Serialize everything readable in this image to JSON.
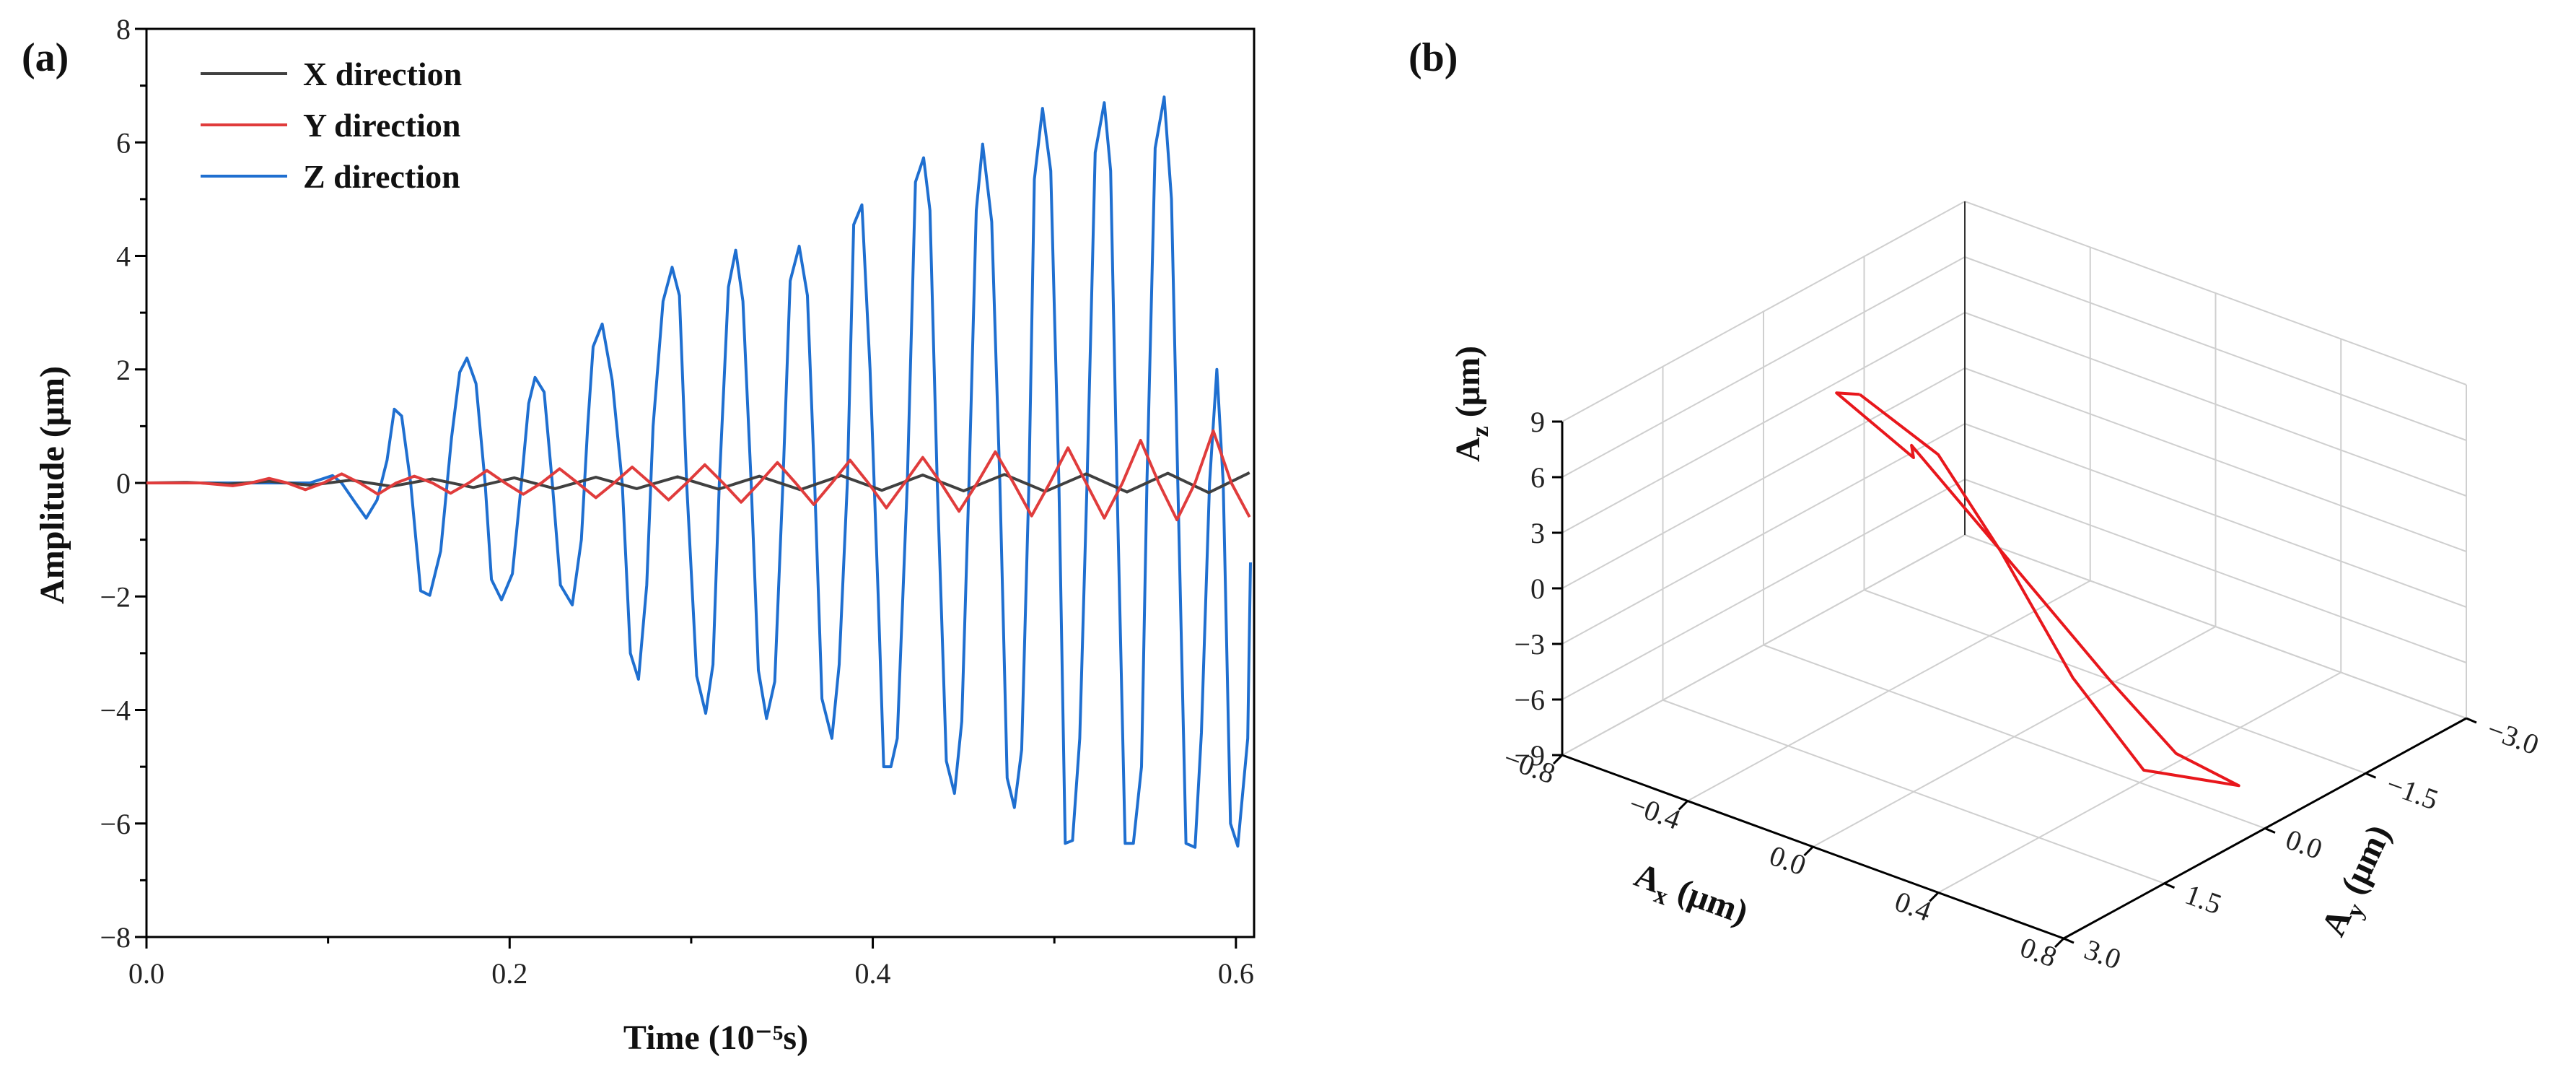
{
  "chart_data": [
    {
      "panel": "(a)",
      "type": "line",
      "xlabel": "Time (10⁻⁵s)",
      "ylabel": "Amplitude (μm)",
      "xlim": [
        0,
        0.61
      ],
      "ylim": [
        -8,
        8
      ],
      "xticks": [
        "0.0",
        "0.2",
        "0.4",
        "0.6"
      ],
      "yticks": [
        "-8",
        "-6",
        "-4",
        "-2",
        "0",
        "2",
        "4",
        "6",
        "8"
      ],
      "legend_position": "top-left",
      "series": [
        {
          "name": "X direction",
          "color": "#404040",
          "x": [
            0.0,
            0.0225,
            0.045,
            0.0675,
            0.09,
            0.1125,
            0.135,
            0.1575,
            0.18,
            0.2025,
            0.225,
            0.2475,
            0.27,
            0.2925,
            0.315,
            0.3375,
            0.36,
            0.3825,
            0.405,
            0.4275,
            0.45,
            0.4725,
            0.495,
            0.5175,
            0.54,
            0.5625,
            0.585,
            0.6075
          ],
          "y": [
            0.0,
            0.01,
            -0.02,
            0.03,
            -0.04,
            0.05,
            -0.06,
            0.07,
            -0.08,
            0.09,
            -0.1,
            0.1,
            -0.1,
            0.11,
            -0.11,
            0.12,
            -0.12,
            0.13,
            -0.13,
            0.14,
            -0.14,
            0.15,
            -0.15,
            0.16,
            -0.16,
            0.17,
            -0.17,
            0.18
          ]
        },
        {
          "name": "Y direction",
          "color": "#e03c3c",
          "x": [
            0.0,
            0.03,
            0.0475,
            0.0575,
            0.0675,
            0.0775,
            0.0875,
            0.0975,
            0.1075,
            0.1175,
            0.1275,
            0.1375,
            0.1475,
            0.1575,
            0.1675,
            0.1775,
            0.1875,
            0.1975,
            0.2075,
            0.2175,
            0.2275,
            0.2375,
            0.2475,
            0.2575,
            0.2675,
            0.2775,
            0.2875,
            0.2975,
            0.3075,
            0.3175,
            0.3275,
            0.3375,
            0.3475,
            0.3575,
            0.3675,
            0.3775,
            0.3875,
            0.3975,
            0.4075,
            0.4175,
            0.4275,
            0.4375,
            0.4475,
            0.4575,
            0.4675,
            0.4775,
            0.4875,
            0.4975,
            0.5075,
            0.5175,
            0.5275,
            0.5375,
            0.5475,
            0.5575,
            0.5675,
            0.5775,
            0.5875,
            0.5975,
            0.6075
          ],
          "y": [
            0.0,
            0.0,
            -0.05,
            0.0,
            0.08,
            0.0,
            -0.12,
            0.0,
            0.16,
            0.0,
            -0.2,
            0.0,
            0.12,
            0.0,
            -0.18,
            0.0,
            0.22,
            0.0,
            -0.2,
            0.0,
            0.25,
            0.0,
            -0.26,
            0.0,
            0.28,
            0.0,
            -0.3,
            0.0,
            0.32,
            0.0,
            -0.34,
            0.0,
            0.36,
            0.0,
            -0.38,
            0.0,
            0.4,
            0.0,
            -0.44,
            0.0,
            0.45,
            0.0,
            -0.5,
            0.0,
            0.55,
            0.0,
            -0.58,
            0.0,
            0.62,
            0.0,
            -0.62,
            0.0,
            0.75,
            0.0,
            -0.65,
            0.0,
            0.92,
            0.0,
            -0.6
          ]
        },
        {
          "name": "Z direction",
          "color": "#1f6fd0",
          "x": [
            0.0,
            0.05,
            0.09,
            0.1025,
            0.1075,
            0.115,
            0.121,
            0.127,
            0.1325,
            0.1365,
            0.1405,
            0.1455,
            0.151,
            0.156,
            0.162,
            0.168,
            0.1725,
            0.1765,
            0.1815,
            0.1865,
            0.19,
            0.1955,
            0.2015,
            0.2065,
            0.2105,
            0.214,
            0.219,
            0.2235,
            0.228,
            0.2345,
            0.2395,
            0.243,
            0.246,
            0.251,
            0.2565,
            0.262,
            0.2665,
            0.271,
            0.2755,
            0.279,
            0.2845,
            0.2895,
            0.2935,
            0.2975,
            0.303,
            0.308,
            0.312,
            0.3155,
            0.3205,
            0.3245,
            0.3285,
            0.333,
            0.337,
            0.3415,
            0.346,
            0.3505,
            0.3545,
            0.3595,
            0.364,
            0.368,
            0.372,
            0.3775,
            0.3815,
            0.386,
            0.3895,
            0.394,
            0.3985,
            0.403,
            0.406,
            0.41,
            0.4135,
            0.419,
            0.4235,
            0.428,
            0.4315,
            0.4355,
            0.4405,
            0.445,
            0.449,
            0.453,
            0.457,
            0.4605,
            0.4655,
            0.47,
            0.474,
            0.478,
            0.482,
            0.486,
            0.489,
            0.4935,
            0.498,
            0.5025,
            0.506,
            0.51,
            0.514,
            0.518,
            0.5225,
            0.5275,
            0.531,
            0.5345,
            0.539,
            0.5435,
            0.548,
            0.551,
            0.5555,
            0.5605,
            0.5645,
            0.568,
            0.5725,
            0.5775,
            0.581,
            0.5855,
            0.5895,
            0.593,
            0.597,
            0.601,
            0.6065,
            0.608
          ],
          "y": [
            0.0,
            0.0,
            0.0,
            0.13,
            0.0,
            -0.35,
            -0.62,
            -0.3,
            0.4,
            1.3,
            1.18,
            0.0,
            -1.9,
            -1.98,
            -1.2,
            0.8,
            1.95,
            2.2,
            1.75,
            0.0,
            -1.7,
            -2.06,
            -1.6,
            0.0,
            1.4,
            1.86,
            1.6,
            0.0,
            -1.8,
            -2.15,
            -1.0,
            1.0,
            2.4,
            2.8,
            1.8,
            0.0,
            -3.0,
            -3.46,
            -1.8,
            1.0,
            3.2,
            3.8,
            3.3,
            0.0,
            -3.4,
            -4.06,
            -3.2,
            0.0,
            3.45,
            4.1,
            3.2,
            0.0,
            -3.3,
            -4.15,
            -3.5,
            0.0,
            3.56,
            4.17,
            3.3,
            0.0,
            -3.8,
            -4.5,
            -3.2,
            0.0,
            4.55,
            4.9,
            2.0,
            -2.0,
            -5.0,
            -5.0,
            -4.5,
            0.0,
            5.3,
            5.73,
            4.8,
            0.0,
            -4.9,
            -5.47,
            -4.2,
            0.0,
            4.8,
            5.97,
            4.6,
            0.0,
            -5.2,
            -5.72,
            -4.7,
            0.0,
            5.35,
            6.6,
            5.5,
            0.0,
            -6.35,
            -6.3,
            -4.5,
            0.0,
            5.82,
            6.7,
            5.5,
            0.0,
            -6.35,
            -6.35,
            -5.0,
            0.0,
            5.9,
            6.8,
            5.0,
            0.0,
            -6.35,
            -6.42,
            -4.4,
            0.0,
            2.0,
            0.0,
            -6.0,
            -6.4,
            -4.5,
            -1.4
          ]
        }
      ]
    },
    {
      "panel": "(b)",
      "type": "line3d",
      "xlabel": "Ax (μm)",
      "ylabel": "Ay (μm)",
      "zlabel": "Az (μm)",
      "xlim": [
        -0.8,
        0.8
      ],
      "ylim": [
        -3.0,
        3.0
      ],
      "zlim": [
        -9,
        9
      ],
      "xticks": [
        "-0.8",
        "-0.4",
        "0.0",
        "0.4",
        "0.8"
      ],
      "yticks": [
        "3.0",
        "1.5",
        "0.0",
        "-1.5",
        "-3.0"
      ],
      "zticks": [
        "9",
        "6",
        "3",
        "0",
        "-3",
        "-6",
        "-9"
      ],
      "line_color": "#e8171c",
      "trajectory": [
        {
          "x": -0.3,
          "y": 0.9,
          "z": 9.4
        },
        {
          "x": -0.05,
          "y": 0.9,
          "z": 7.7
        },
        {
          "x": 0.15,
          "y": 0.9,
          "z": 3.7
        },
        {
          "x": 0.38,
          "y": 0.9,
          "z": -1.7
        },
        {
          "x": 0.52,
          "y": 0.5,
          "z": -6.6
        },
        {
          "x": 0.62,
          "y": -0.45,
          "z": -8.7
        },
        {
          "x": 0.42,
          "y": -0.45,
          "z": -8.2
        },
        {
          "x": 0.22,
          "y": -0.4,
          "z": -5.4
        },
        {
          "x": -0.1,
          "y": -0.25,
          "z": 0.0
        },
        {
          "x": -0.36,
          "y": -0.15,
          "z": 4.2
        },
        {
          "x": -0.3,
          "y": 0.1,
          "z": 4.4
        },
        {
          "x": -0.46,
          "y": 0.5,
          "z": 7.7
        },
        {
          "x": -0.3,
          "y": 0.9,
          "z": 9.4
        }
      ]
    }
  ]
}
